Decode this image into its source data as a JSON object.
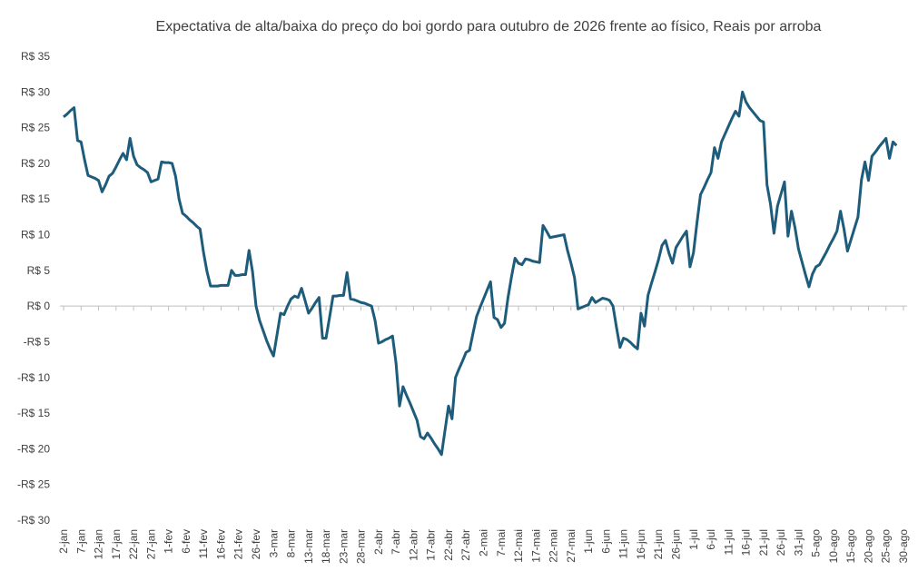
{
  "chart_data": {
    "type": "line",
    "title": "Expectativa de alta/baixa do preço do boi gordo para outubro de 2026 frente ao físico, Reais por arroba",
    "categories": [
      "2-jan",
      null,
      null,
      null,
      null,
      "7-jan",
      null,
      null,
      null,
      null,
      "12-jan",
      null,
      null,
      null,
      null,
      "17-jan",
      null,
      null,
      null,
      null,
      "22-jan",
      null,
      null,
      null,
      null,
      "27-jan",
      null,
      null,
      null,
      null,
      "1-fev",
      null,
      null,
      null,
      null,
      "6-fev",
      null,
      null,
      null,
      null,
      "11-fev",
      null,
      null,
      null,
      null,
      "16-fev",
      null,
      null,
      null,
      null,
      "21-fev",
      null,
      null,
      null,
      null,
      "26-fev",
      null,
      null,
      null,
      null,
      "3-mar",
      null,
      null,
      null,
      null,
      "8-mar",
      null,
      null,
      null,
      null,
      "13-mar",
      null,
      null,
      null,
      null,
      "18-mar",
      null,
      null,
      null,
      null,
      "23-mar",
      null,
      null,
      null,
      null,
      "28-mar",
      null,
      null,
      null,
      null,
      "2-abr",
      null,
      null,
      null,
      null,
      "7-abr",
      null,
      null,
      null,
      null,
      "12-abr",
      null,
      null,
      null,
      null,
      "17-abr",
      null,
      null,
      null,
      null,
      "22-abr",
      null,
      null,
      null,
      null,
      "27-abr",
      null,
      null,
      null,
      null,
      "2-mai",
      null,
      null,
      null,
      null,
      "7-mai",
      null,
      null,
      null,
      null,
      "12-mai",
      null,
      null,
      null,
      null,
      "17-mai",
      null,
      null,
      null,
      null,
      "22-mai",
      null,
      null,
      null,
      null,
      "27-mai",
      null,
      null,
      null,
      null,
      "1-jun",
      null,
      null,
      null,
      null,
      "6-jun",
      null,
      null,
      null,
      null,
      "11-jun",
      null,
      null,
      null,
      null,
      "16-jun",
      null,
      null,
      null,
      null,
      "21-jun",
      null,
      null,
      null,
      null,
      "26-jun",
      null,
      null,
      null,
      null,
      "1-jul",
      null,
      null,
      null,
      null,
      "6-jul",
      null,
      null,
      null,
      null,
      "11-jul",
      null,
      null,
      null,
      null,
      "16-jul",
      null,
      null,
      null,
      null,
      "21-jul",
      null,
      null,
      null,
      null,
      "26-jul",
      null,
      null,
      null,
      null,
      "31-jul",
      null,
      null,
      null,
      null,
      "5-ago",
      null,
      null,
      null,
      null,
      "10-ago",
      null,
      null,
      null,
      null,
      "15-ago",
      null,
      null,
      null,
      null,
      "20-ago",
      null,
      null,
      null,
      null,
      "25-ago",
      null,
      null,
      null,
      null,
      "30-ago"
    ],
    "series": [
      {
        "color": "#1d5c7a",
        "values": [
          26.5,
          26.9,
          27.4,
          27.8,
          23.2,
          23.0,
          20.5,
          18.3,
          18.1,
          17.9,
          17.6,
          16.0,
          17.0,
          18.2,
          18.6,
          19.5,
          20.5,
          21.4,
          20.5,
          23.5,
          21.0,
          19.8,
          19.4,
          19.1,
          18.7,
          17.4,
          17.6,
          17.8,
          20.2,
          20.1,
          20.1,
          20.0,
          18.2,
          15.0,
          13.0,
          12.6,
          12.1,
          11.7,
          11.2,
          10.8,
          7.5,
          4.8,
          2.8,
          2.8,
          2.8,
          2.9,
          2.9,
          2.9,
          5.0,
          4.3,
          4.3,
          4.4,
          4.4,
          7.8,
          4.8,
          0,
          -2.0,
          -3.4,
          -4.8,
          -6.0,
          -7.0,
          -4.0,
          -1.0,
          -1.2,
          0,
          1.0,
          1.4,
          1.2,
          2.5,
          0.8,
          -1.0,
          -0.3,
          0.5,
          1.2,
          -4.5,
          -4.5,
          -1.6,
          1.4,
          1.4,
          1.5,
          1.5,
          4.7,
          1.0,
          0.9,
          0.7,
          0.5,
          0.4,
          0.2,
          0,
          -2.0,
          -5.2,
          -5.0,
          -4.7,
          -4.5,
          -4.2,
          -8.0,
          -14.0,
          -11.3,
          -12.5,
          -13.6,
          -14.8,
          -16.0,
          -18.3,
          -18.6,
          -17.8,
          -18.5,
          -19.3,
          -20.0,
          -20.8,
          -17.4,
          -14.0,
          -15.8,
          -10.0,
          -8.8,
          -7.7,
          -6.5,
          -6.2,
          -3.8,
          -1.5,
          -0.2,
          1.0,
          2.2,
          3.4,
          -1.6,
          -1.9,
          -3.0,
          -2.4,
          1.2,
          4.1,
          6.7,
          6.0,
          5.8,
          6.6,
          6.5,
          6.3,
          6.2,
          6.1,
          11.3,
          10.5,
          9.6,
          9.7,
          9.8,
          9.9,
          10.0,
          7.8,
          6.0,
          4.0,
          -0.4,
          -0.2,
          0,
          0.2,
          1.2,
          0.5,
          0.8,
          1.1,
          1.0,
          0.8,
          0,
          -3.0,
          -5.8,
          -4.5,
          -4.7,
          -5.1,
          -5.6,
          -6.0,
          -1.0,
          -2.8,
          1.5,
          3.2,
          4.8,
          6.5,
          8.5,
          9.2,
          7.4,
          6.0,
          8.2,
          9.0,
          9.8,
          10.5,
          5.5,
          7.5,
          11.7,
          15.6,
          16.6,
          17.7,
          18.7,
          22.2,
          20.7,
          23.0,
          24.1,
          25.2,
          26.3,
          27.3,
          26.6,
          30.0,
          28.6,
          27.8,
          27.2,
          26.6,
          26.0,
          25.8,
          17.0,
          14.3,
          10.2,
          14.0,
          15.7,
          17.4,
          9.8,
          13.3,
          11.0,
          8.0,
          6.2,
          4.4,
          2.7,
          4.5,
          5.5,
          5.8,
          6.7,
          7.6,
          8.6,
          9.5,
          10.5,
          13.3,
          10.8,
          7.7,
          9.3,
          10.9,
          12.5,
          17.7,
          20.2,
          17.6,
          21.0,
          21.6,
          22.3,
          22.9,
          23.5,
          20.7,
          23.0,
          22.5,
          null,
          null
        ]
      }
    ],
    "ylim": [
      -30,
      35
    ],
    "yticks": [
      {
        "value": -30,
        "label": "-R$ 30"
      },
      {
        "value": -25,
        "label": "-R$ 25"
      },
      {
        "value": -20,
        "label": "-R$ 20"
      },
      {
        "value": -15,
        "label": "-R$ 15"
      },
      {
        "value": -10,
        "label": "-R$ 10"
      },
      {
        "value": -5,
        "label": "-R$ 5"
      },
      {
        "value": 0,
        "label": "R$ 0"
      },
      {
        "value": 5,
        "label": "R$ 5"
      },
      {
        "value": 10,
        "label": "R$ 10"
      },
      {
        "value": 15,
        "label": "R$ 15"
      },
      {
        "value": 20,
        "label": "R$ 20"
      },
      {
        "value": 25,
        "label": "R$ 25"
      },
      {
        "value": 30,
        "label": "R$ 30"
      },
      {
        "value": 35,
        "label": "R$ 35"
      }
    ],
    "grid": false
  }
}
